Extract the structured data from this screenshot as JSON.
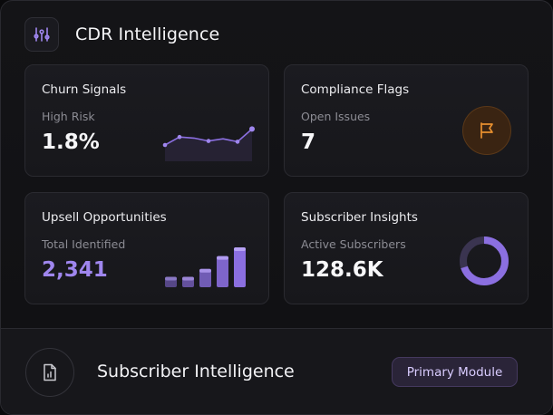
{
  "app": {
    "title": "CDR Intelligence",
    "icon": "chart-sliders-icon"
  },
  "cards": [
    {
      "title": "Churn Signals",
      "subtitle": "High Risk",
      "value": "1.8%",
      "visual": "line-sparkline",
      "trend": [
        0.35,
        0.57,
        0.54,
        0.46,
        0.52,
        0.44,
        0.79
      ]
    },
    {
      "title": "Compliance Flags",
      "subtitle": "Open Issues",
      "value": "7",
      "visual": "flag-icon"
    },
    {
      "title": "Upsell Opportunities",
      "subtitle": "Total Identified",
      "value": "2,341",
      "visual": "bar-sparkline",
      "bars": [
        0.26,
        0.26,
        0.46,
        0.78,
        1.0
      ]
    },
    {
      "title": "Subscriber Insights",
      "subtitle": "Active Subscribers",
      "value": "128.6K",
      "visual": "donut",
      "donut_fraction": 0.7
    }
  ],
  "footer": {
    "title": "Subscriber Intelligence",
    "button_label": "Primary Module",
    "icon": "document-chart-icon"
  },
  "colors": {
    "accent": "#8b6fe0",
    "accent_light": "#9f86ee",
    "flag_orange": "#e8902f",
    "background": "#101013"
  }
}
